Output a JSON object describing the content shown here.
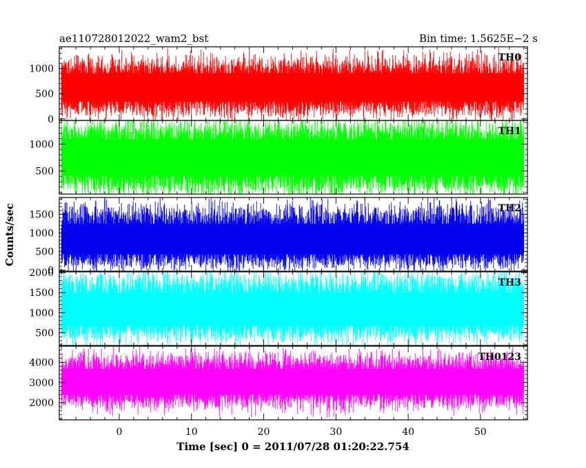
{
  "header": {
    "title": "ae110728012022_wam2_bst",
    "bin_time": "Bin time: 1.5625E−2 s"
  },
  "chart_data": {
    "type": "line",
    "xlabel": "Time [sec] 0 = 2011/07/28 01:20:22.754",
    "ylabel": "Counts/sec",
    "xlim": [
      -8.3,
      56.5
    ],
    "x_ticks": [
      0,
      10,
      20,
      30,
      40,
      50
    ],
    "x_range_data": [
      -8.0,
      56.0
    ],
    "bin_time_s": 0.015625,
    "grid": false,
    "legend": "none",
    "panels": [
      {
        "name": "TH0",
        "color": "#ff0000",
        "ylim": [
          -30,
          1430
        ],
        "y_ticks": [
          0,
          500,
          1000
        ],
        "y_tick_labels": [
          "0",
          "500",
          "1000"
        ],
        "mean": 620,
        "band_low": 250,
        "band_high": 1000,
        "spike_min": 20,
        "spike_max": 1420
      },
      {
        "name": "TH1",
        "color": "#00ff00",
        "ylim": [
          70,
          1440
        ],
        "y_ticks": [
          500,
          1000
        ],
        "y_tick_labels": [
          "500",
          "1000"
        ],
        "mean": 760,
        "band_low": 300,
        "band_high": 1200,
        "spike_min": 140,
        "spike_max": 1430
      },
      {
        "name": "TH2",
        "color": "#0000ee",
        "ylim": [
          -30,
          1950
        ],
        "y_ticks": [
          0,
          500,
          1000,
          1500
        ],
        "y_tick_labels": [
          "0",
          "500",
          "1000",
          "1500"
        ],
        "mean": 780,
        "band_low": 300,
        "band_high": 1400,
        "spike_min": 20,
        "spike_max": 1900
      },
      {
        "name": "TH3",
        "color": "#00ffff",
        "ylim": [
          180,
          2020
        ],
        "y_ticks": [
          500,
          1000,
          1500,
          2000
        ],
        "y_tick_labels": [
          "500",
          "1000",
          "1500",
          "2000"
        ],
        "mean": 1050,
        "band_low": 550,
        "band_high": 1650,
        "spike_min": 250,
        "spike_max": 2010
      },
      {
        "name": "TH0123",
        "color": "#ff00ff",
        "ylim": [
          1150,
          4800
        ],
        "y_ticks": [
          2000,
          3000,
          4000
        ],
        "y_tick_labels": [
          "2000",
          "3000",
          "4000"
        ],
        "mean": 3000,
        "band_low": 2200,
        "band_high": 3900,
        "spike_min": 1250,
        "spike_max": 4750
      }
    ]
  }
}
